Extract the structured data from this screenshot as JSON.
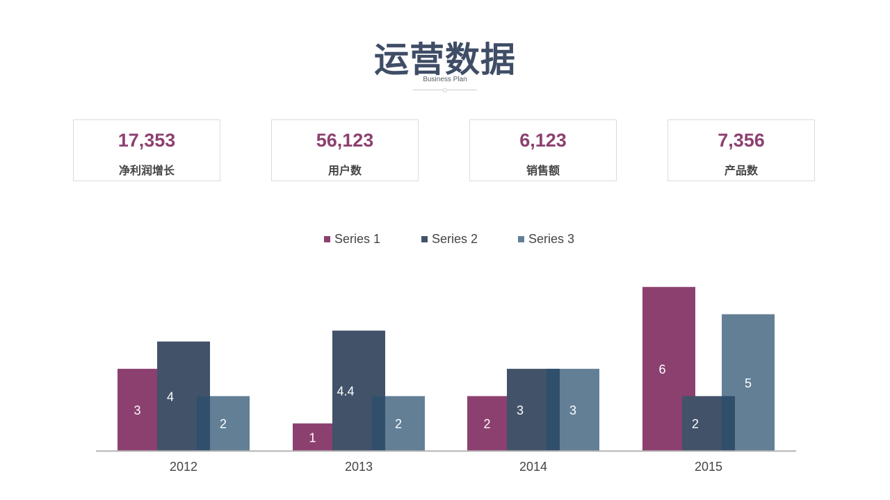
{
  "header": {
    "title": "运营数据",
    "subtitle": "Business Plan"
  },
  "kpis": [
    {
      "value": "17,353",
      "label": "净利润增长"
    },
    {
      "value": "56,123",
      "label": "用户数"
    },
    {
      "value": "6,123",
      "label": "销售额"
    },
    {
      "value": "7,356",
      "label": "产品数"
    }
  ],
  "colors": {
    "accent": "#8c4070",
    "title": "#3f4d66",
    "series1": "#8c4070",
    "series2": "#415269",
    "series3": "#637f96",
    "overlap": "#2f4f6b",
    "axis": "#b3b3b3"
  },
  "chart_data": {
    "type": "bar",
    "categories": [
      "2012",
      "2013",
      "2014",
      "2015"
    ],
    "series": [
      {
        "name": "Series 1",
        "values": [
          3,
          1,
          2,
          6
        ]
      },
      {
        "name": "Series 2",
        "values": [
          4,
          4.4,
          3,
          2
        ]
      },
      {
        "name": "Series 3",
        "values": [
          2,
          2,
          3,
          5
        ]
      }
    ],
    "data_labels": [
      [
        "3",
        "1",
        "2",
        "6"
      ],
      [
        "4",
        "4.4",
        "3",
        "2"
      ],
      [
        "2",
        "2",
        "3",
        "5"
      ]
    ],
    "legend_position": "top",
    "grid": false,
    "ylim": [
      0,
      6.2
    ],
    "xlabel": "",
    "ylabel": ""
  }
}
